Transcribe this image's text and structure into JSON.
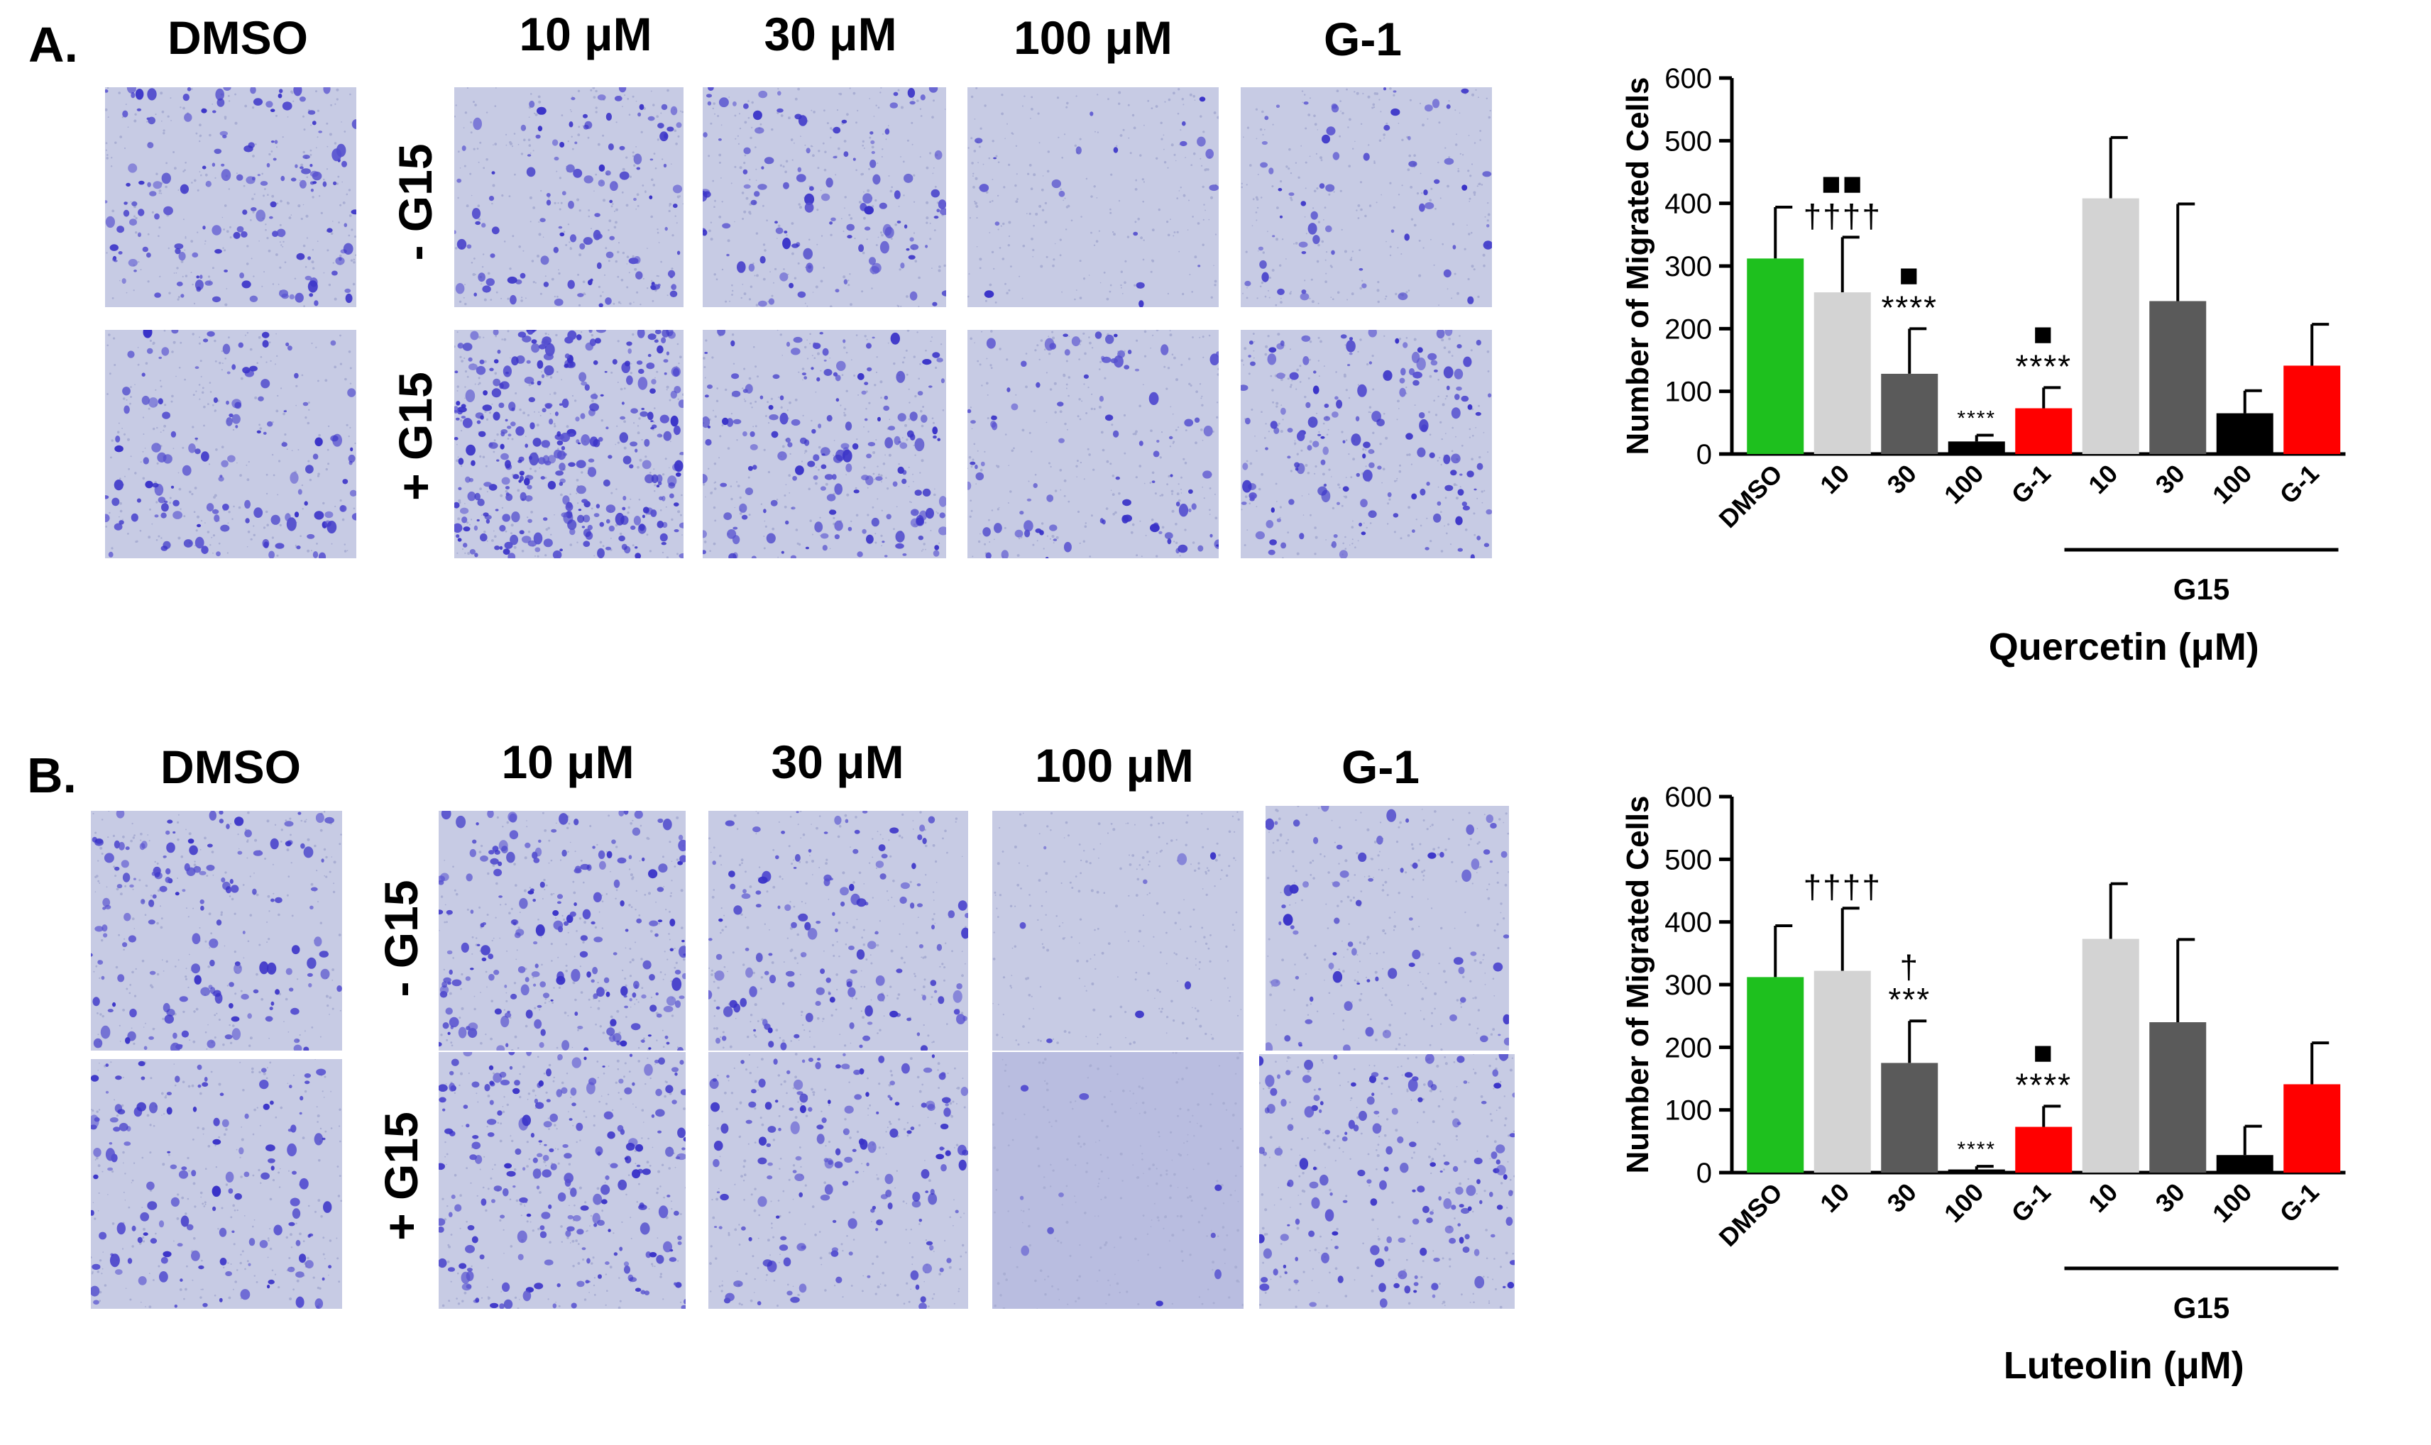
{
  "panels": [
    {
      "letter": "A.",
      "headers": [
        "DMSO",
        "10 μM",
        "30 μM",
        "100 μM",
        "G-1"
      ],
      "row_labels": [
        "- G15",
        "+ G15"
      ],
      "chart_data": {
        "type": "bar",
        "categories": [
          "DMSO",
          "10",
          "30",
          "100",
          "G-1",
          "10",
          "30",
          "100",
          "G-1"
        ],
        "values": [
          312,
          258,
          128,
          20,
          73,
          408,
          244,
          65,
          141
        ],
        "errors": [
          82,
          88,
          72,
          10,
          33,
          97,
          155,
          36,
          66
        ],
        "colors": [
          "#1ec01e",
          "#d3d3d3",
          "#5a5a5a",
          "#000000",
          "#ff0000",
          "#d3d3d3",
          "#5a5a5a",
          "#000000",
          "#ff0000"
        ],
        "annotations": [
          {
            "index": 1,
            "lines": [
              "■■",
              "††††"
            ]
          },
          {
            "index": 2,
            "lines": [
              "■",
              "****"
            ]
          },
          {
            "index": 3,
            "lines": [
              "****"
            ]
          },
          {
            "index": 4,
            "lines": [
              "■",
              "****"
            ]
          }
        ],
        "ylabel": "Number of Migrated Cells",
        "xlabel": "Quercetin (μM)",
        "group_label": "G15",
        "yticks": [
          0,
          100,
          200,
          300,
          400,
          500,
          600
        ],
        "ylim": [
          0,
          600
        ]
      }
    },
    {
      "letter": "B.",
      "headers": [
        "DMSO",
        "10 μM",
        "30 μM",
        "100 μM",
        "G-1"
      ],
      "row_labels": [
        "- G15",
        "+ G15"
      ],
      "chart_data": {
        "type": "bar",
        "categories": [
          "DMSO",
          "10",
          "30",
          "100",
          "G-1",
          "10",
          "30",
          "100",
          "G-1"
        ],
        "values": [
          312,
          322,
          175,
          5,
          73,
          373,
          240,
          28,
          141
        ],
        "errors": [
          82,
          100,
          67,
          5,
          33,
          88,
          132,
          46,
          66
        ],
        "colors": [
          "#1ec01e",
          "#d3d3d3",
          "#5a5a5a",
          "#000000",
          "#ff0000",
          "#d3d3d3",
          "#5a5a5a",
          "#000000",
          "#ff0000"
        ],
        "annotations": [
          {
            "index": 1,
            "lines": [
              "††††"
            ]
          },
          {
            "index": 2,
            "lines": [
              "†",
              "***"
            ]
          },
          {
            "index": 3,
            "lines": [
              "****"
            ]
          },
          {
            "index": 4,
            "lines": [
              "■",
              "****"
            ]
          }
        ],
        "ylabel": "Number of Migrated Cells",
        "xlabel": "Luteolin (μM)",
        "group_label": "G15",
        "yticks": [
          0,
          100,
          200,
          300,
          400,
          500,
          600
        ],
        "ylim": [
          0,
          600
        ]
      }
    }
  ]
}
